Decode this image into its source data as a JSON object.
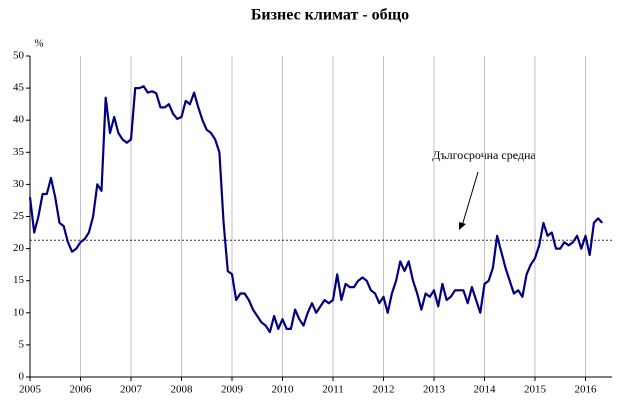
{
  "chart_data": {
    "type": "line",
    "title": "Бизнес климат - общо",
    "y_unit": "%",
    "annotation": "Дългосрочна средна",
    "average": 21.3,
    "average_color": "#333333",
    "categories": [
      "2005",
      null,
      null,
      null,
      null,
      null,
      null,
      null,
      null,
      null,
      null,
      null,
      "2006",
      null,
      null,
      null,
      null,
      null,
      null,
      null,
      null,
      null,
      null,
      null,
      "2007",
      null,
      null,
      null,
      null,
      null,
      null,
      null,
      null,
      null,
      null,
      null,
      "2008",
      null,
      null,
      null,
      null,
      null,
      null,
      null,
      null,
      null,
      null,
      null,
      "2009",
      null,
      null,
      null,
      null,
      null,
      null,
      null,
      null,
      null,
      null,
      null,
      "2010",
      null,
      null,
      null,
      null,
      null,
      null,
      null,
      null,
      null,
      null,
      null,
      "2011",
      null,
      null,
      null,
      null,
      null,
      null,
      null,
      null,
      null,
      null,
      null,
      "2012",
      null,
      null,
      null,
      null,
      null,
      null,
      null,
      null,
      null,
      null,
      null,
      "2013",
      null,
      null,
      null,
      null,
      null,
      null,
      null,
      null,
      null,
      null,
      null,
      "2014",
      null,
      null,
      null,
      null,
      null,
      null,
      null,
      null,
      null,
      null,
      null,
      "2015",
      null,
      null,
      null,
      null,
      null,
      null,
      null,
      null,
      null,
      null,
      null,
      "2016",
      null,
      null,
      null,
      null
    ],
    "series": [
      {
        "color": "#000080",
        "values": [
          28,
          22.5,
          25,
          28.5,
          28.5,
          31,
          28,
          24,
          23.5,
          21,
          19.5,
          20,
          21,
          21.5,
          22.5,
          25,
          30,
          29,
          43.5,
          38,
          40.5,
          38,
          37,
          36.5,
          37,
          45,
          45,
          45.3,
          44.3,
          44.5,
          44.2,
          42,
          42,
          42.5,
          41,
          40.2,
          40.5,
          43,
          42.5,
          44.3,
          42,
          40,
          38.5,
          38,
          37,
          35,
          24,
          16.5,
          16,
          12,
          13,
          13,
          12,
          10.5,
          9.5,
          8.5,
          8,
          7,
          9.5,
          7.5,
          9,
          7.5,
          7.5,
          10.5,
          9,
          8,
          10,
          11.5,
          10,
          11,
          12,
          11.5,
          12,
          16,
          12,
          14.5,
          14,
          14,
          15,
          15.5,
          15,
          13.5,
          13,
          11.5,
          12.5,
          10,
          13,
          15,
          18,
          16.5,
          18,
          15,
          13,
          10.5,
          13,
          12.5,
          13.5,
          11,
          14.5,
          12,
          12.5,
          13.5,
          13.5,
          13.5,
          11.5,
          14,
          12,
          10,
          14.5,
          15,
          17,
          22,
          19.5,
          17,
          15,
          13,
          13.5,
          12.5,
          16,
          17.5,
          18.5,
          20.5,
          24,
          22,
          22.5,
          20,
          20,
          21,
          20.5,
          21,
          22,
          20,
          22,
          19,
          24,
          24.7,
          24
        ]
      }
    ],
    "ylim": [
      0,
      50
    ],
    "yticks": [
      0,
      5,
      10,
      15,
      20,
      25,
      30,
      35,
      40,
      45,
      50
    ],
    "grid": true
  }
}
